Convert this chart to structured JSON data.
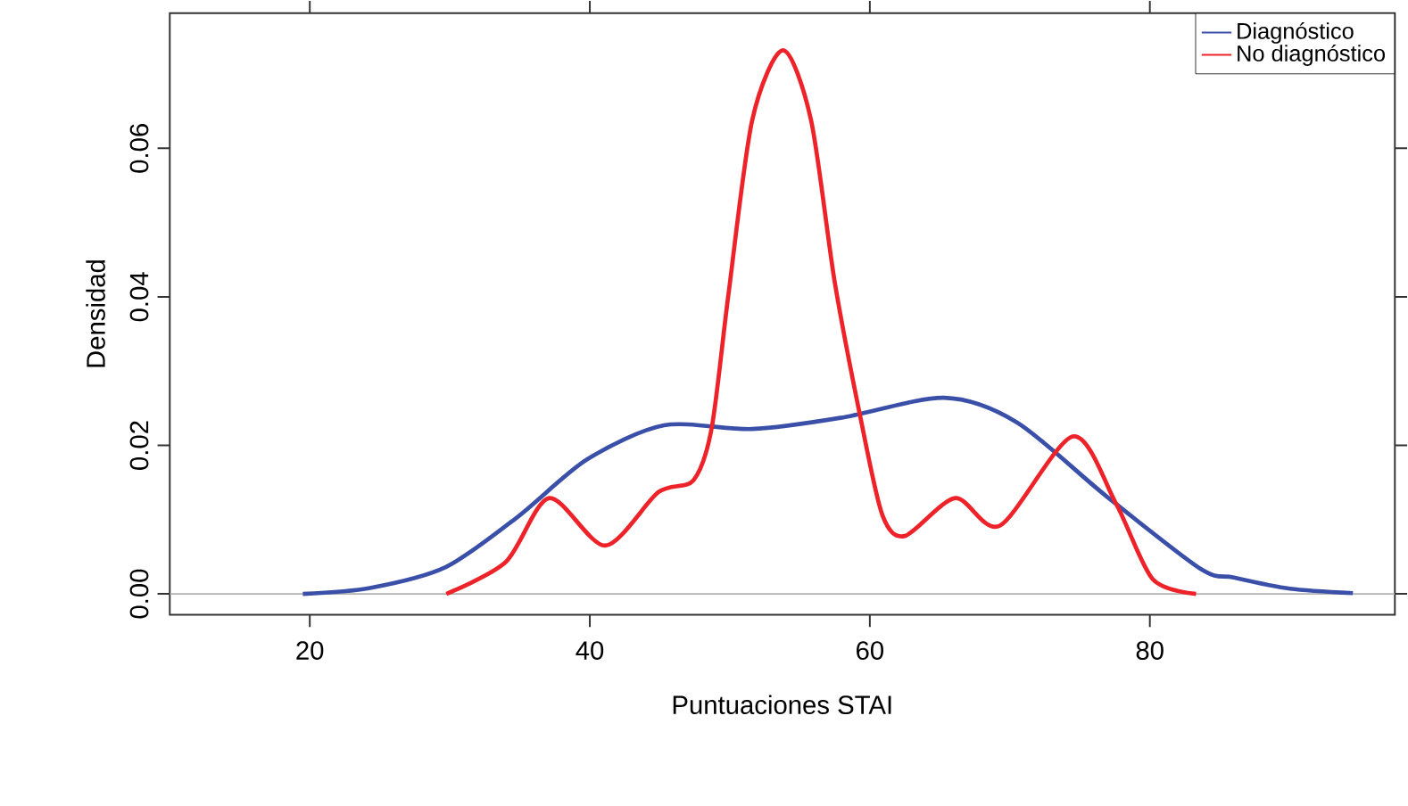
{
  "chart_data": {
    "type": "line",
    "xlabel": "Puntuaciones STAI",
    "ylabel": "Densidad",
    "xlim": [
      10,
      97.5
    ],
    "ylim": [
      -0.0028,
      0.0782
    ],
    "xticks": [
      20,
      40,
      60,
      80
    ],
    "yticks": [
      {
        "value": 0,
        "label": "0.00"
      },
      {
        "value": 0.02,
        "label": "0.02"
      },
      {
        "value": 0.04,
        "label": "0.04"
      },
      {
        "value": 0.06,
        "label": "0.06"
      }
    ],
    "grid": false,
    "legend": "top right",
    "marker": "none",
    "line_style": "solid",
    "ref_lines": [
      {
        "axis": "y",
        "value": 0,
        "color": "#b0b0b0"
      }
    ],
    "series": [
      {
        "name": "Diagnóstico",
        "color": "#3a4fa8",
        "x": [
          19.5,
          24.3,
          29.7,
          34.8,
          39.8,
          45.3,
          51.6,
          57.9,
          65.3,
          70.5,
          76.8,
          83.6,
          86.0,
          90.0,
          94.5
        ],
        "values": [
          0,
          0.0008,
          0.0036,
          0.0103,
          0.0181,
          0.0227,
          0.0222,
          0.0237,
          0.0264,
          0.0231,
          0.0133,
          0.0034,
          0.0022,
          0.0007,
          0.0001
        ]
      },
      {
        "name": "No diagnóstico",
        "color": "#ee2229",
        "x": [
          29.75,
          34.0,
          37.1,
          41.1,
          44.9,
          47.4,
          48.7,
          49.9,
          51.6,
          53.8,
          55.8,
          57.5,
          59.4,
          60.9,
          62.5,
          66.1,
          69.3,
          74.5,
          77.6,
          80.2,
          83.3
        ],
        "values": [
          0,
          0.0043,
          0.0129,
          0.0065,
          0.0137,
          0.0153,
          0.0223,
          0.0403,
          0.0638,
          0.0732,
          0.0638,
          0.0419,
          0.0231,
          0.0106,
          0.0078,
          0.0129,
          0.0092,
          0.0212,
          0.0121,
          0.002,
          0
        ]
      }
    ]
  }
}
